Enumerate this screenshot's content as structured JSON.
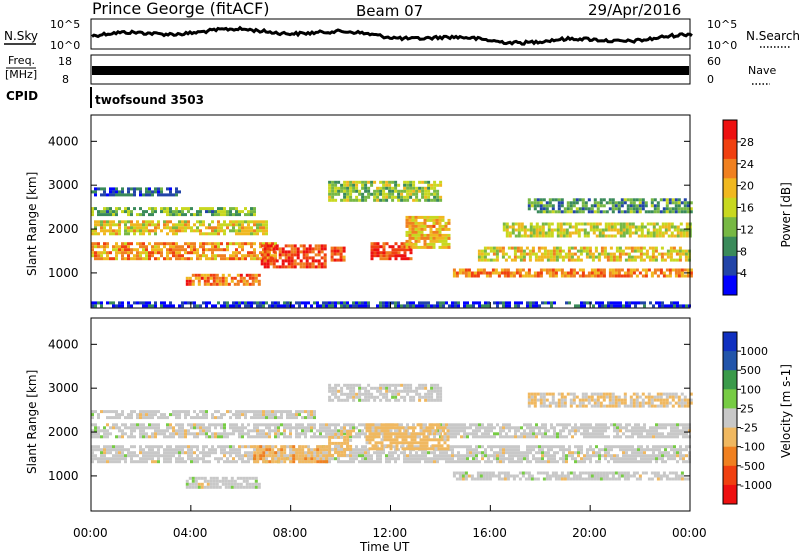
{
  "header": {
    "station": "Prince George (fitACF)",
    "beam": "Beam 07",
    "date": "29/Apr/2016"
  },
  "noise_panel": {
    "left_label": "N.Sky",
    "right_label": "N.Search",
    "ticks": [
      "10^5",
      "10^0"
    ]
  },
  "freq_panel": {
    "left_label_1": "Freq.",
    "left_label_2": "[MHz]",
    "left_ticks": [
      "18",
      "8"
    ],
    "right_label": "Nave",
    "right_ticks": [
      "60",
      "0"
    ]
  },
  "cpid_panel": {
    "label": "CPID",
    "value": "twofsound 3503"
  },
  "chart_data": [
    {
      "type": "heatmap",
      "name": "power",
      "ylabel": "Slant Range [km]",
      "ylim": [
        200,
        4600
      ],
      "yticks": [
        "1000",
        "2000",
        "3000",
        "4000"
      ],
      "xlabel": "",
      "xlim": [
        "00:00",
        "24:00"
      ],
      "colorbar": {
        "label": "Power [dB]",
        "ticks": [
          "28",
          "24",
          "20",
          "16",
          "12",
          "8",
          "4"
        ],
        "range": [
          0,
          32
        ],
        "colors": [
          "#0000ff",
          "#2244a8",
          "#3a8a5a",
          "#77b844",
          "#c8d820",
          "#f0b820",
          "#f08020",
          "#f04010",
          "#ee1010"
        ]
      },
      "bands": [
        {
          "t0": 0.0,
          "t1": 7.4,
          "r0": 1300,
          "r1": 1700,
          "power": 22
        },
        {
          "t0": 0.0,
          "t1": 7.0,
          "r0": 1900,
          "r1": 2200,
          "power": 18
        },
        {
          "t0": 0.0,
          "t1": 6.5,
          "r0": 2300,
          "r1": 2500,
          "power": 12
        },
        {
          "t0": 0.0,
          "t1": 3.5,
          "r0": 2750,
          "r1": 2950,
          "power": 6
        },
        {
          "t0": 3.8,
          "t1": 6.8,
          "r0": 750,
          "r1": 980,
          "power": 24
        },
        {
          "t0": 6.8,
          "t1": 9.4,
          "r0": 1150,
          "r1": 1650,
          "power": 27
        },
        {
          "t0": 9.6,
          "t1": 10.2,
          "r0": 1300,
          "r1": 1600,
          "power": 26
        },
        {
          "t0": 11.2,
          "t1": 12.8,
          "r0": 1300,
          "r1": 1700,
          "power": 27
        },
        {
          "t0": 12.6,
          "t1": 14.3,
          "r0": 1600,
          "r1": 2300,
          "power": 20
        },
        {
          "t0": 9.5,
          "t1": 14.0,
          "r0": 2650,
          "r1": 3100,
          "power": 14
        },
        {
          "t0": 14.5,
          "t1": 24.0,
          "r0": 900,
          "r1": 1100,
          "power": 23
        },
        {
          "t0": 15.5,
          "t1": 24.0,
          "r0": 1300,
          "r1": 1600,
          "power": 18
        },
        {
          "t0": 16.5,
          "t1": 24.0,
          "r0": 1850,
          "r1": 2150,
          "power": 16
        },
        {
          "t0": 17.5,
          "t1": 24.0,
          "r0": 2400,
          "r1": 2700,
          "power": 10
        },
        {
          "t0": 0.0,
          "t1": 24.0,
          "r0": 220,
          "r1": 350,
          "power": 4
        }
      ]
    },
    {
      "type": "heatmap",
      "name": "velocity",
      "ylabel": "Slant Range [km]",
      "ylim": [
        200,
        4600
      ],
      "yticks": [
        "1000",
        "2000",
        "3000",
        "4000"
      ],
      "xlabel": "Time UT",
      "xlim": [
        "00:00",
        "24:00"
      ],
      "xticks": [
        "00:00",
        "04:00",
        "08:00",
        "12:00",
        "16:00",
        "20:00",
        "00:00"
      ],
      "colorbar": {
        "label": "Velocity [m s-1]",
        "ticks": [
          "1000",
          "500",
          "100",
          "25",
          "-25",
          "-100",
          "-500",
          "-1000"
        ],
        "range": [
          -1200,
          1200
        ],
        "colors": [
          "#ee1010",
          "#f04010",
          "#f08020",
          "#f0b860",
          "#c8c8c8",
          "#77cc44",
          "#3a9a4a",
          "#2255aa",
          "#1030c0"
        ]
      },
      "bands": [
        {
          "t0": 0.0,
          "t1": 24.0,
          "r0": 1300,
          "r1": 1700,
          "velocity": 0
        },
        {
          "t0": 0.0,
          "t1": 24.0,
          "r0": 1900,
          "r1": 2200,
          "velocity": 0
        },
        {
          "t0": 0.0,
          "t1": 9.0,
          "r0": 2300,
          "r1": 2500,
          "velocity": 0
        },
        {
          "t0": 3.8,
          "t1": 6.8,
          "r0": 750,
          "r1": 980,
          "velocity": 0
        },
        {
          "t0": 6.5,
          "t1": 9.5,
          "r0": 1300,
          "r1": 1700,
          "velocity": -300
        },
        {
          "t0": 9.5,
          "t1": 10.4,
          "r0": 1450,
          "r1": 2050,
          "velocity": -200
        },
        {
          "t0": 11.0,
          "t1": 14.3,
          "r0": 1600,
          "r1": 2200,
          "velocity": -250
        },
        {
          "t0": 9.5,
          "t1": 14.0,
          "r0": 2700,
          "r1": 3100,
          "velocity": 0
        },
        {
          "t0": 14.5,
          "t1": 24.0,
          "r0": 900,
          "r1": 1100,
          "velocity": 0
        },
        {
          "t0": 17.5,
          "t1": 24.0,
          "r0": 2600,
          "r1": 2900,
          "velocity": -150
        }
      ]
    }
  ]
}
